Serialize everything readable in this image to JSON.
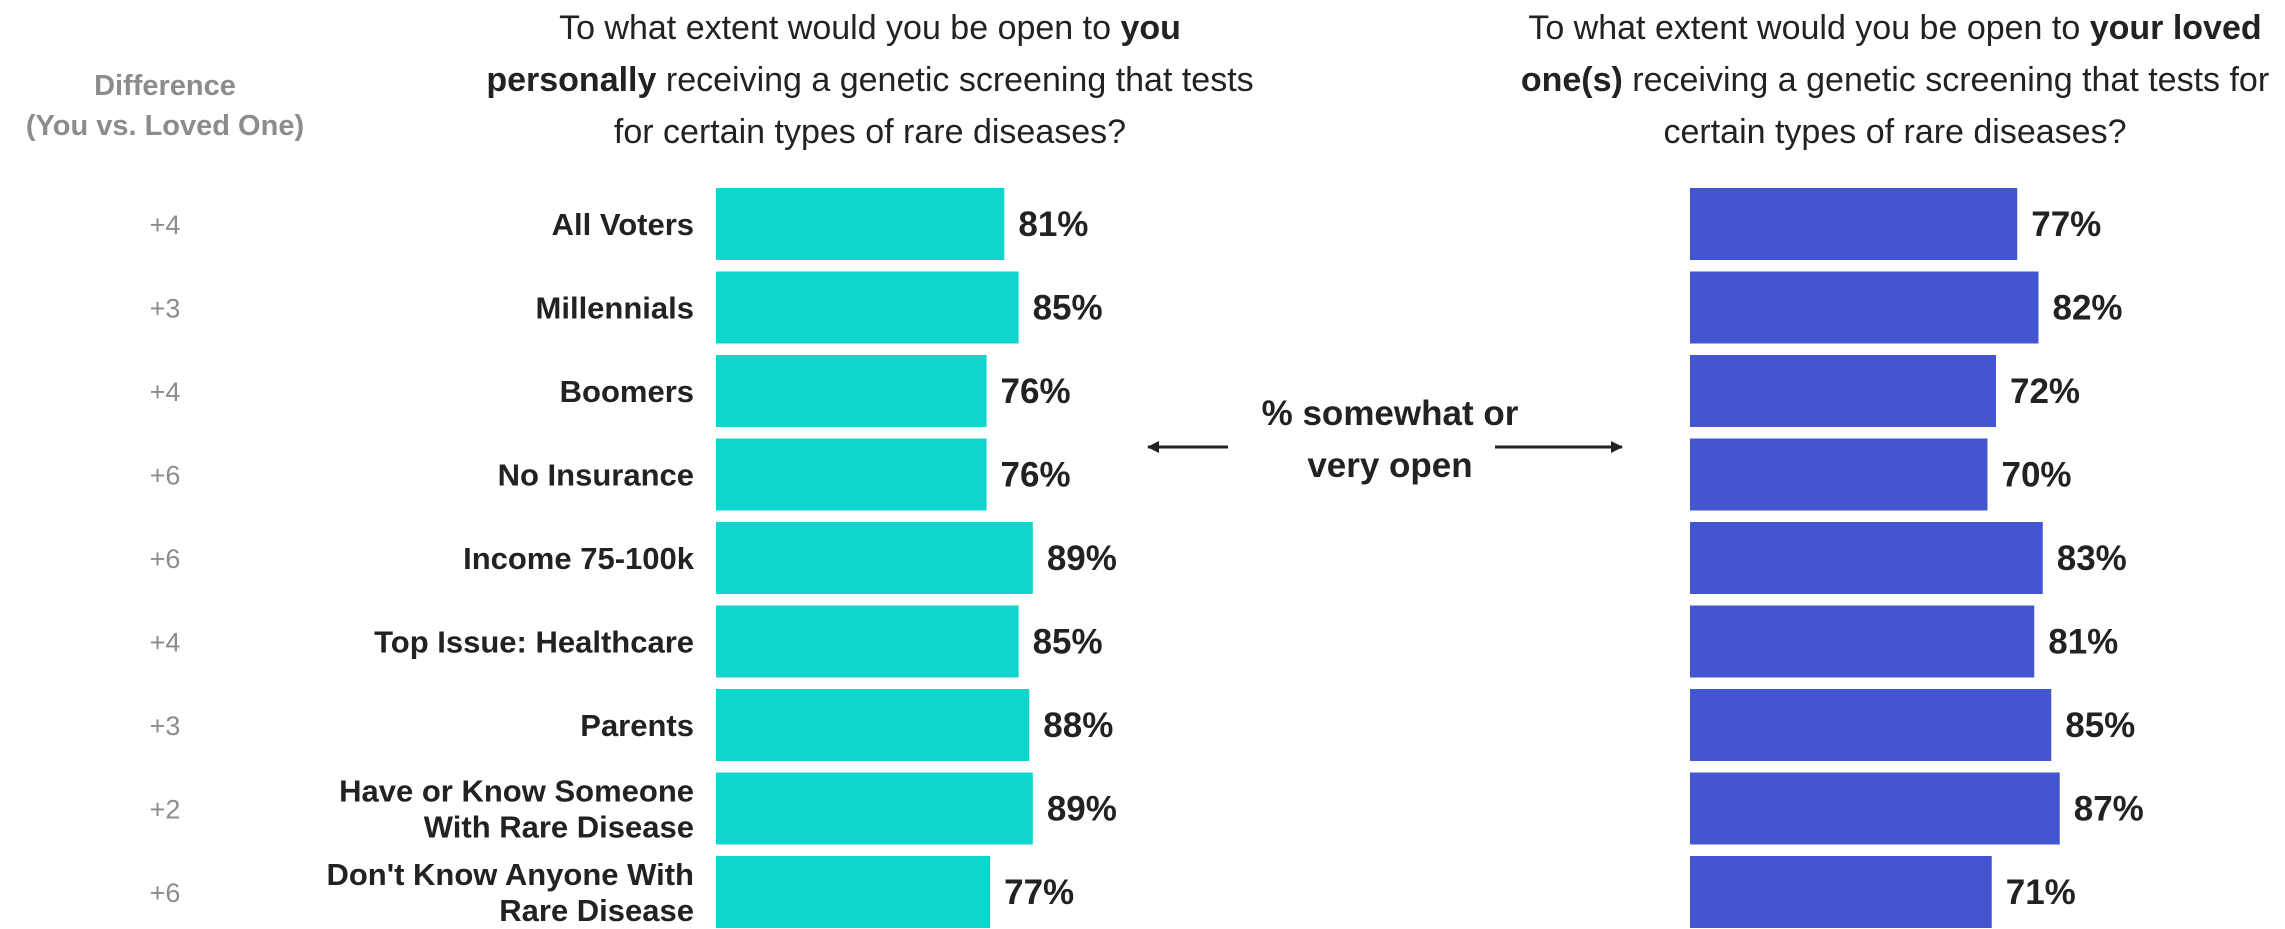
{
  "difference_header": [
    "Difference",
    "(You vs. Loved One)"
  ],
  "question_left": {
    "pre": "To what extent would you be open to ",
    "bold": "you personally",
    "post": " receiving a genetic screening that tests for certain types of rare diseases?"
  },
  "question_right": {
    "pre": "To what extent would you be open to ",
    "bold": "your loved one(s)",
    "post": " receiving a genetic screening that tests for certain types of rare diseases?"
  },
  "center_label": [
    "% somewhat or",
    "very open"
  ],
  "colors": {
    "you": "#0fd6cc",
    "loved_one": "#4356cf",
    "arrow": "#222222"
  },
  "chart_data": {
    "type": "bar",
    "orientation": "horizontal",
    "categories": [
      [
        "All Voters"
      ],
      [
        "Millennials"
      ],
      [
        "Boomers"
      ],
      [
        "No Insurance"
      ],
      [
        "Income 75-100k"
      ],
      [
        "Top Issue: Healthcare"
      ],
      [
        "Parents"
      ],
      [
        "Have or Know Someone",
        "With Rare Disease"
      ],
      [
        "Don't Know Anyone With",
        "Rare Disease"
      ]
    ],
    "differences": [
      "+4",
      "+3",
      "+4",
      "+6",
      "+6",
      "+4",
      "+3",
      "+2",
      "+6"
    ],
    "series": [
      {
        "values": [
          81,
          85,
          76,
          76,
          89,
          85,
          88,
          89,
          77
        ]
      },
      {
        "values": [
          77,
          82,
          72,
          70,
          83,
          81,
          85,
          87,
          71
        ]
      }
    ],
    "value_suffix": "%",
    "xlim": [
      0,
      100
    ],
    "grid": false,
    "legend": "none"
  }
}
